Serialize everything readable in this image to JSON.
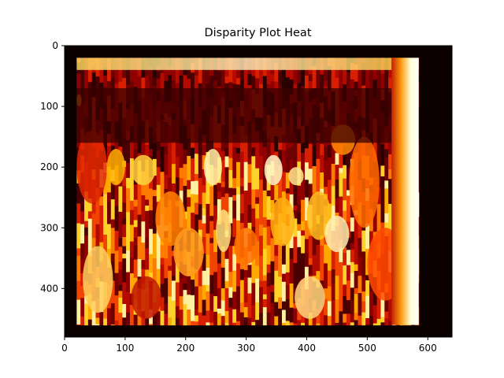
{
  "chart_data": {
    "type": "heatmap",
    "title": "Disparity Plot Heat",
    "xlabel": "",
    "ylabel": "",
    "xlim": [
      0,
      640
    ],
    "ylim": [
      480,
      0
    ],
    "y_inverted": true,
    "colormap": "hot",
    "grid": false,
    "x_ticks": [
      0,
      100,
      200,
      300,
      400,
      500,
      600
    ],
    "y_ticks": [
      0,
      100,
      200,
      300,
      400
    ],
    "image_extent": {
      "outer_border": [
        0,
        640,
        0,
        480
      ],
      "valid_region": [
        20,
        585,
        20,
        460
      ]
    },
    "colors": {
      "background": "#ffffff",
      "border": "#0a0000",
      "dark": "#3a0000",
      "mid_red": "#a00000",
      "red": "#e01000",
      "orange": "#ff6a00",
      "yellow": "#ffd000",
      "white": "#ffffe8"
    }
  }
}
